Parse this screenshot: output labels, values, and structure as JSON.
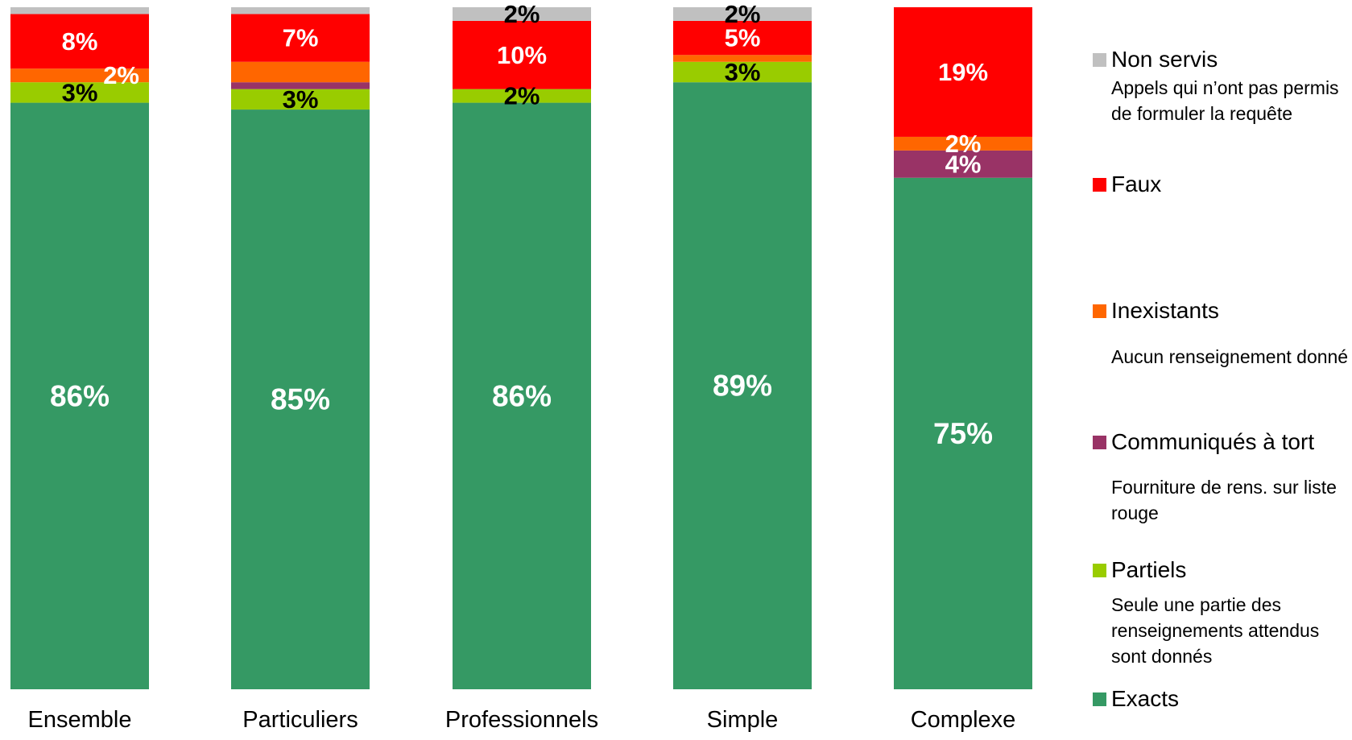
{
  "chart_data": {
    "type": "bar",
    "stacked": true,
    "percent_stacked": true,
    "categories": [
      "Ensemble",
      "Particuliers",
      "Professionnels",
      "Simple",
      "Complexe"
    ],
    "series": [
      {
        "name": "Exacts",
        "color": "#359964",
        "values": [
          86,
          85,
          86,
          89,
          75
        ],
        "labels": [
          "86%",
          "85%",
          "86%",
          "89%",
          "75%"
        ],
        "label_color": "#ffffff"
      },
      {
        "name": "Partiels",
        "color": "#99cc00",
        "values": [
          3,
          3,
          2,
          3,
          0
        ],
        "labels": [
          "3%",
          "3%",
          "2%",
          "3%",
          ""
        ],
        "label_color": "#000000"
      },
      {
        "name": "Communiqués à tort",
        "color": "#993366",
        "values": [
          0,
          1,
          0,
          0,
          4
        ],
        "labels": [
          "",
          "",
          "",
          "",
          "4%"
        ],
        "label_color": "#ffffff"
      },
      {
        "name": "Inexistants",
        "color": "#ff6600",
        "values": [
          2,
          3,
          0,
          1,
          2
        ],
        "labels": [
          "2%",
          "",
          "",
          "",
          "2%"
        ],
        "label_color": "#ffffff"
      },
      {
        "name": "Faux",
        "color": "#ff0000",
        "values": [
          8,
          7,
          10,
          5,
          19
        ],
        "labels": [
          "8%",
          "7%",
          "10%",
          "5%",
          "19%"
        ],
        "label_color": "#ffffff"
      },
      {
        "name": "Non servis",
        "color": "#c0c0c0",
        "values": [
          1,
          1,
          2,
          2,
          0
        ],
        "labels": [
          "",
          "",
          "2%",
          "2%",
          ""
        ],
        "label_color": "#000000"
      }
    ],
    "ylim": [
      0,
      100
    ],
    "grid": false,
    "legend_position": "right"
  },
  "legend": [
    {
      "label": "Non servis",
      "desc": "Appels qui n’ont pas permis de formuler la requête"
    },
    {
      "label": "Faux",
      "desc": ""
    },
    {
      "label": "Inexistants",
      "desc": "Aucun renseignement donné"
    },
    {
      "label": "Communiqués à tort",
      "desc": "Fourniture de rens. sur liste rouge"
    },
    {
      "label": "Partiels",
      "desc": "Seule une partie des renseignements attendus sont donnés"
    },
    {
      "label": "Exacts",
      "desc": ""
    }
  ]
}
